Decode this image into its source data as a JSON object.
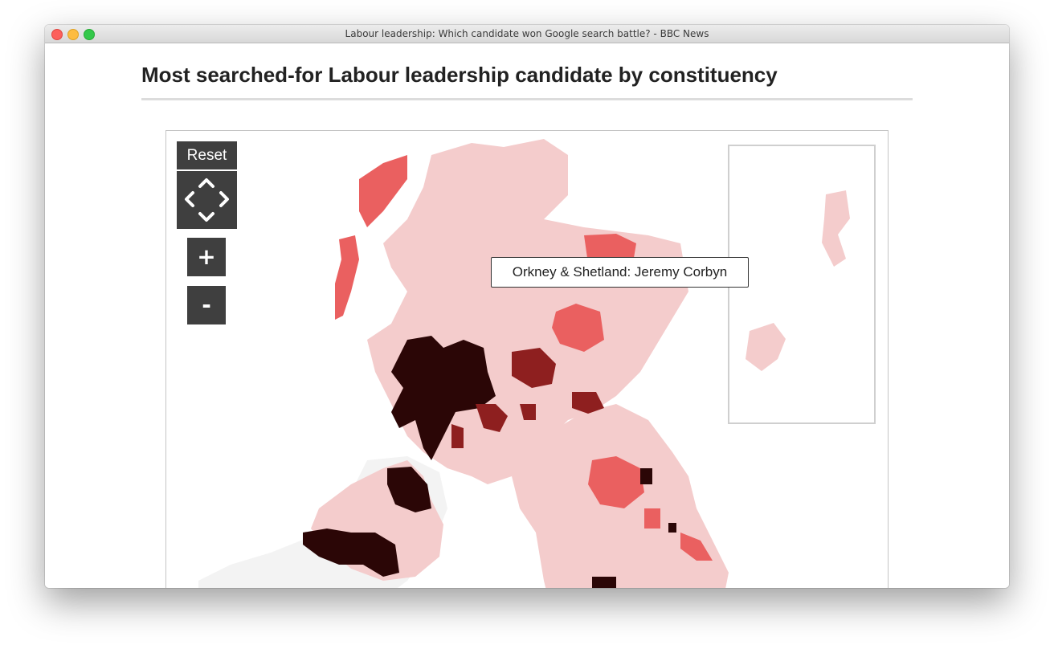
{
  "window": {
    "title": "Labour leadership: Which candidate won Google search battle? - BBC News"
  },
  "page": {
    "heading": "Most searched-for Labour leadership candidate by constituency"
  },
  "map": {
    "controls": {
      "reset_label": "Reset",
      "pan_icon": "pan-arrows-icon",
      "zoom_in_label": "+",
      "zoom_out_label": "-"
    },
    "tooltip": {
      "text": "Orkney & Shetland: Jeremy Corbyn"
    },
    "inset_label": "Orkney & Shetland inset",
    "colors": {
      "lightest": "#f4cccc",
      "medium": "#ea6060",
      "dark": "#8e1f1f",
      "darkest": "#2b0606",
      "no_data_land": "#f3f3f3",
      "button_bg": "#3f3f3f"
    }
  }
}
